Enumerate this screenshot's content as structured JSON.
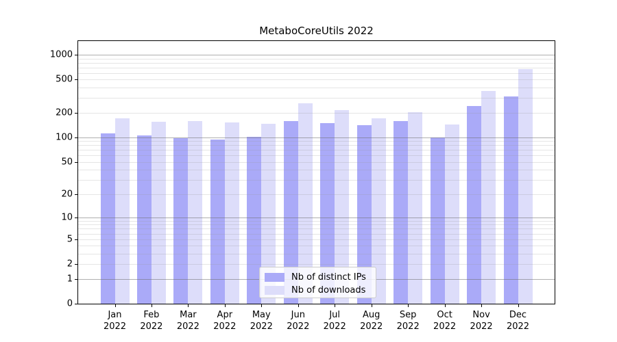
{
  "title": "MetaboCoreUtils 2022",
  "chart_data": {
    "type": "bar",
    "title": "MetaboCoreUtils 2022",
    "months": [
      "Jan",
      "Feb",
      "Mar",
      "Apr",
      "May",
      "Jun",
      "Jul",
      "Aug",
      "Sep",
      "Oct",
      "Nov",
      "Dec"
    ],
    "year": "2022",
    "categories": [
      "Jan 2022",
      "Feb 2022",
      "Mar 2022",
      "Apr 2022",
      "May 2022",
      "Jun 2022",
      "Jul 2022",
      "Aug 2022",
      "Sep 2022",
      "Oct 2022",
      "Nov 2022",
      "Dec 2022"
    ],
    "series": [
      {
        "name": "Nb of distinct IPs",
        "color": "#aaaaf8",
        "values": [
          112,
          106,
          97,
          94,
          102,
          157,
          148,
          140,
          157,
          100,
          240,
          311
        ]
      },
      {
        "name": "Nb of downloads",
        "color": "#ddddfa",
        "values": [
          171,
          154,
          159,
          152,
          146,
          257,
          214,
          170,
          201,
          143,
          362,
          672
        ]
      }
    ],
    "yscale": "log1p",
    "y_ticks": [
      0,
      1,
      2,
      5,
      10,
      20,
      50,
      100,
      200,
      500,
      1000
    ],
    "y_major_gridlines": [
      1,
      10,
      100,
      1000
    ],
    "ylim": [
      0,
      1460
    ],
    "grid": true,
    "legend_position": "lower center",
    "xlabel": "",
    "ylabel": ""
  },
  "colors": {
    "background": "#ffffff",
    "axis": "#000000",
    "major_grid": "#b0b0b0",
    "minor_grid": "#e8e8e8",
    "legend_border": "#cccccc"
  }
}
